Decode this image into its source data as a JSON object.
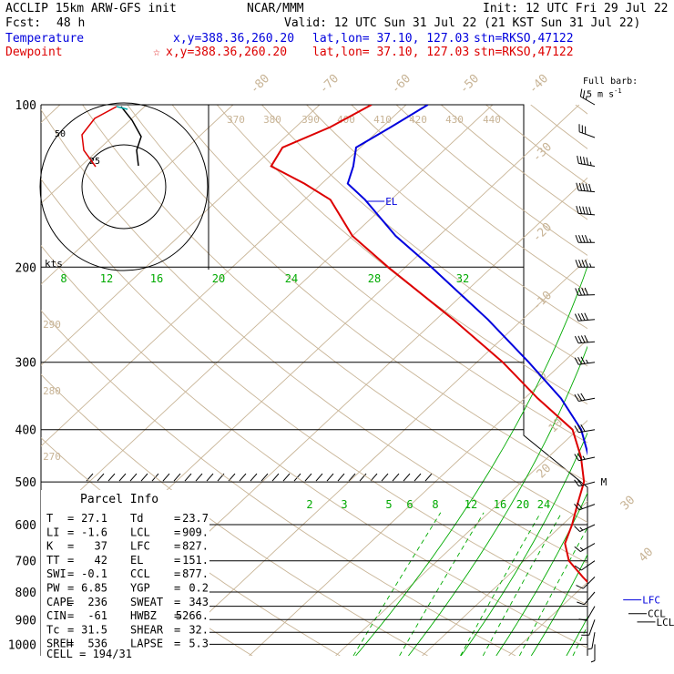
{
  "header": {
    "model": "ACCLIP 15km ARW-GFS init",
    "org": "NCAR/MMM",
    "init": "Init: 12 UTC Fri 29 Jul 22",
    "fcst_label": "Fcst:",
    "fcst_value": "48 h",
    "valid": "Valid: 12 UTC Sun 31 Jul 22 (21 KST Sun 31 Jul 22)",
    "temp_label": "Temperature",
    "temp_xy": "x,y=388.36,260.20",
    "temp_latlon": "lat,lon= 37.10, 127.03",
    "temp_stn": "stn=RKSO,47122",
    "dew_label": "Dewpoint",
    "dew_xy": "x,y=388.36,260.20",
    "dew_latlon": "lat,lon= 37.10, 127.03",
    "dew_stn": "stn=RKSO,47122",
    "barb_key": "Full barb:",
    "barb_key_units": "5 m s",
    "hodo_units": "kts"
  },
  "colors": {
    "temperature": "#0000dd",
    "dewpoint": "#dd0000",
    "isotherm": "#c8b496",
    "mixing_ratio": "#00aa00",
    "isobar": "#000000"
  },
  "parcel": {
    "title": "Parcel Info",
    "rows": [
      [
        "T",
        "=",
        "27.1",
        "Td",
        "=",
        "23.7"
      ],
      [
        "LI",
        "=",
        "-1.6",
        "LCL",
        "=",
        "909."
      ],
      [
        "K",
        "=",
        "37",
        "LFC",
        "=",
        "827."
      ],
      [
        "TT",
        "=",
        "42",
        "EL",
        "=",
        "151."
      ],
      [
        "SWI",
        "=",
        "-0.1",
        "CCL",
        "=",
        "877."
      ],
      [
        "PW",
        "=",
        "6.85",
        "YGP",
        "=",
        "0.2"
      ],
      [
        "CAPE",
        "=",
        "236",
        "SWEAT",
        "=",
        "343"
      ],
      [
        "CIN",
        "=",
        "-61",
        "HWBZ",
        "=",
        "5266."
      ],
      [
        "Tc",
        "=",
        "31.5",
        "SHEAR",
        "=",
        "32."
      ],
      [
        "SREH",
        "=",
        "536",
        "LAPSE",
        "=",
        "5.3"
      ]
    ],
    "cell": "CELL = 194/31"
  },
  "chart_data": {
    "type": "line",
    "chart_kind": "skew-T log-p sounding",
    "pressure_levels": [
      "100",
      "200",
      "300",
      "400",
      "500",
      "600",
      "700",
      "800",
      "900",
      "1000"
    ],
    "isotherm_labels_top": [
      "-80",
      "-70",
      "-60",
      "-50",
      "-40"
    ],
    "isotherm_labels_right": [
      "-30",
      "-20",
      "-10",
      "0",
      "10",
      "20",
      "30",
      "40"
    ],
    "theta_labels_top": [
      "370",
      "380",
      "390",
      "400",
      "410",
      "420",
      "430",
      "440"
    ],
    "theta_labels_left": [
      "290",
      "280",
      "270"
    ],
    "mixing_ratio_labels_upper": [
      "8",
      "12",
      "16",
      "20",
      "24",
      "28",
      "32"
    ],
    "mixing_ratio_labels_lower": [
      "2",
      "3",
      "5",
      "6",
      "8",
      "12",
      "16",
      "20",
      "24"
    ],
    "series": [
      {
        "name": "Temperature",
        "p": [
          1000,
          975,
          950,
          925,
          900,
          875,
          850,
          825,
          800,
          775,
          750,
          700,
          650,
          600,
          550,
          500,
          450,
          400,
          350,
          300,
          250,
          200,
          175,
          150,
          140,
          130,
          120,
          110,
          100
        ],
        "t": [
          26.4,
          25.5,
          24.0,
          21.8,
          20.0,
          18.5,
          17.5,
          16.2,
          15.0,
          13.8,
          12.6,
          10.0,
          7.5,
          4.5,
          1.8,
          -1.5,
          -5.3,
          -9.6,
          -15.8,
          -24.0,
          -34.0,
          -47.0,
          -55.0,
          -63.0,
          -67.0,
          -68.5,
          -70.5,
          -69.0,
          -67.5
        ]
      },
      {
        "name": "Dewpoint",
        "p": [
          1000,
          975,
          950,
          925,
          900,
          875,
          850,
          825,
          800,
          775,
          750,
          700,
          650,
          600,
          550,
          500,
          450,
          400,
          350,
          300,
          250,
          200,
          175,
          150,
          140,
          130,
          120,
          110,
          100
        ],
        "t": [
          22.8,
          22.3,
          21.6,
          20.2,
          18.9,
          17.5,
          16.0,
          14.3,
          12.4,
          10.6,
          8.8,
          5.2,
          2.6,
          1.1,
          -0.8,
          -2.8,
          -6.2,
          -10.6,
          -18.5,
          -27.0,
          -38.0,
          -52.0,
          -60.0,
          -67.0,
          -72.0,
          -78.0,
          -79.0,
          -76.0,
          -74.0
        ]
      }
    ],
    "parcel_levels": [
      {
        "label": "EL",
        "p": 151
      },
      {
        "label": "M",
        "p": 500
      },
      {
        "label": "LFC",
        "p": 827
      },
      {
        "label": "CCL",
        "p": 877
      },
      {
        "label": "LCL",
        "p": 909
      }
    ],
    "wind_barbs": {
      "p": [
        100,
        115,
        130,
        145,
        160,
        180,
        200,
        225,
        250,
        275,
        300,
        350,
        400,
        450,
        500,
        550,
        600,
        650,
        700,
        750,
        800,
        850,
        900,
        950,
        1000
      ],
      "speed_ms": [
        12,
        15,
        22,
        24,
        24,
        22,
        22,
        20,
        20,
        20,
        18,
        15,
        14,
        12,
        10,
        10,
        8,
        8,
        6,
        5,
        5,
        4,
        4,
        3,
        3
      ],
      "dir_deg": [
        300,
        290,
        280,
        275,
        275,
        270,
        270,
        268,
        265,
        265,
        262,
        260,
        260,
        258,
        255,
        250,
        245,
        240,
        235,
        225,
        220,
        210,
        200,
        190,
        180
      ]
    }
  }
}
